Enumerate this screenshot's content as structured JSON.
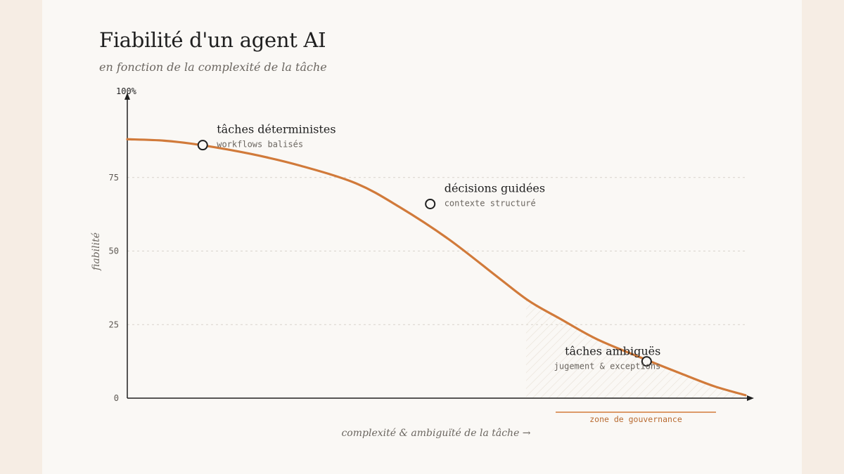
{
  "header": {
    "title": "Fiabilité d'un agent AI",
    "subtitle": "en fonction de la complexité de la tâche"
  },
  "colors": {
    "accent": "#d17a3a",
    "axis": "#1f1f1f",
    "grid": "#d8d3cc",
    "muted": "#6b6660",
    "background": "#faf8f5",
    "page": "#f6ede4"
  },
  "chart_data": {
    "type": "line",
    "title": "Fiabilité d'un agent AI",
    "subtitle": "en fonction de la complexité de la tâche",
    "xlabel": "complexité & ambiguïté de la tâche →",
    "ylabel": "fiabilité",
    "ylim": [
      0,
      100
    ],
    "xlim": [
      0,
      100
    ],
    "y_ticks": [
      "0",
      "25",
      "50",
      "75",
      "100%"
    ],
    "y_tick_values": [
      0,
      25,
      50,
      75,
      100
    ],
    "grid": true,
    "series": [
      {
        "values_x": [
          0,
          6,
          12,
          20,
          28,
          37,
          44,
          52,
          60,
          65,
          70,
          76,
          84,
          90,
          95,
          100
        ],
        "values_y": [
          88,
          87.5,
          86,
          83,
          79,
          73,
          65,
          54,
          41,
          33,
          27,
          20,
          13,
          8,
          4,
          1
        ]
      }
    ],
    "annotations": [
      {
        "x": 12.2,
        "y": 86,
        "label": "tâches déterministes",
        "sublabel": "workflows balisés"
      },
      {
        "x": 49,
        "y": 66,
        "label": "décisions guidées",
        "sublabel": "contexte structuré"
      },
      {
        "x": 84,
        "y": 12.5,
        "label": "tâches ambiguës",
        "sublabel": "jugement & exceptions"
      }
    ],
    "zone": {
      "label": "zone de gouvernance",
      "x_from": 64.5,
      "x_to": 100
    }
  }
}
